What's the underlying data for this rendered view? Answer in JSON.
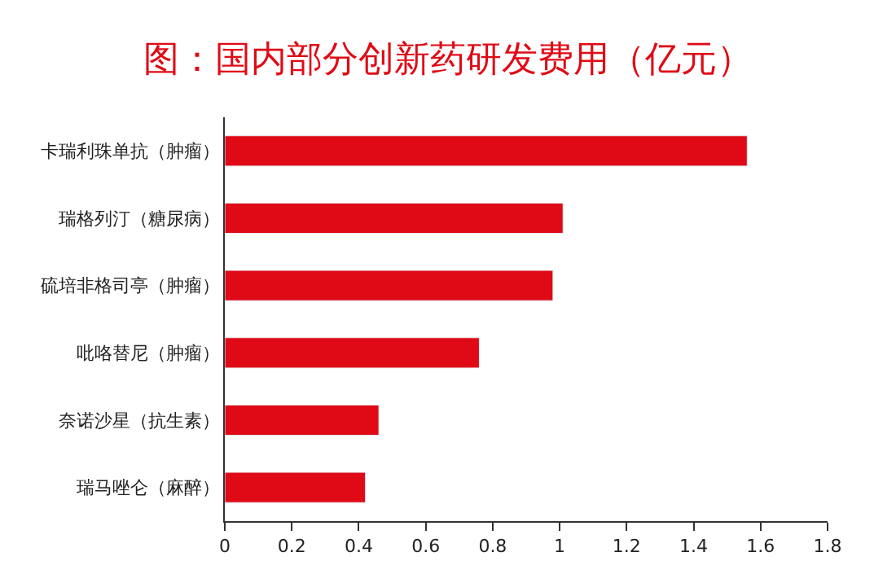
{
  "chart_data": {
    "type": "bar",
    "orientation": "horizontal",
    "title": "图：国内部分创新药研发费用（亿元）",
    "categories": [
      "卡瑞利珠单抗（肿瘤）",
      "瑞格列汀（糖尿病）",
      "硫培非格司亭（肿瘤）",
      "吡咯替尼（肿瘤）",
      "奈诺沙星（抗生素）",
      "瑞马唑仑（麻醉）"
    ],
    "values": [
      1.56,
      1.01,
      0.98,
      0.76,
      0.46,
      0.42
    ],
    "color": "#e00a16",
    "xlim": [
      0,
      1.8
    ],
    "xticks": [
      0,
      0.2,
      0.4,
      0.6,
      0.8,
      1,
      1.2,
      1.4,
      1.6,
      1.8
    ]
  }
}
